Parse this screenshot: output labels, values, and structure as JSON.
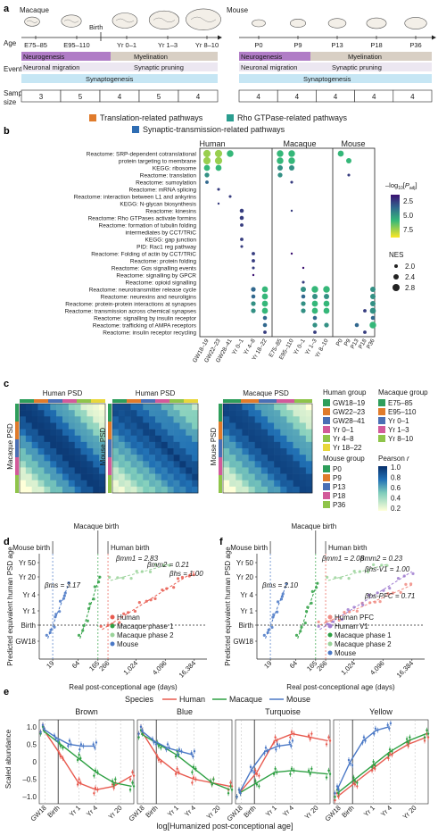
{
  "colors": {
    "human": "#e85a4f",
    "macaque": "#2ea043",
    "mouse": "#4a78c6",
    "neuro": "#b07cc6",
    "myel": "#c9bfb3",
    "synpr": "#b8a9cc",
    "synto": "#b5dcef",
    "translation": "#e07b2b",
    "rho": "#2a9d8f",
    "syn": "#2f6db3"
  },
  "panel_a": {
    "label": "a",
    "macaque": {
      "species": "Macaque",
      "birth": "Birth",
      "axis": "Age",
      "ages": [
        "E75–85",
        "E95–110",
        "Yr 0–1",
        "Yr 1–3",
        "Yr 8–10"
      ],
      "events_label": "Events",
      "neuro": "Neurogenesis",
      "myel": "Myelination",
      "migration": "Neuronal migration",
      "pruning": "Synaptic pruning",
      "synapto": "Synaptogenesis",
      "sample_label": "Sample size",
      "sizes": [
        "3",
        "5",
        "4",
        "5",
        "4"
      ]
    },
    "mouse": {
      "species": "Mouse",
      "ages": [
        "P0",
        "P9",
        "P13",
        "P18",
        "P36"
      ],
      "neuro": "Neurogenesis",
      "myel": "Myelination",
      "migration": "Neuronal migration",
      "pruning": "Synaptic pruning",
      "synapto": "Synaptogenesis",
      "sizes": [
        "4",
        "4",
        "4",
        "4",
        "4"
      ]
    }
  },
  "panel_b": {
    "label": "b",
    "legend": [
      "Translation-related pathways",
      "Rho GTPase-related pathways",
      "Synaptic-transmission-related pathways"
    ],
    "species": [
      "Human",
      "Macaque",
      "Mouse"
    ],
    "pathways": [
      {
        "name": "Reactome: SRP-dependent cotranslational",
        "cat": "translation"
      },
      {
        "name": "protein targeting to membrane",
        "cat": "translation"
      },
      {
        "name": "KEGG: ribosome",
        "cat": "translation"
      },
      {
        "name": "Reactome: translation",
        "cat": "translation"
      },
      {
        "name": "Reactome: sumoylation",
        "cat": "none"
      },
      {
        "name": "Reactome: mRNA splicing",
        "cat": "none"
      },
      {
        "name": "Reactome: interaction between L1 and ankyrins",
        "cat": "none"
      },
      {
        "name": "KEGG: N-glycan biosynthesis",
        "cat": "none"
      },
      {
        "name": "Reactome: kinesins",
        "cat": "none"
      },
      {
        "name": "Reactome: Rho GTPases activate formins",
        "cat": "rho"
      },
      {
        "name": "Reactome: formation of tubulin folding",
        "cat": "none"
      },
      {
        "name": "intermediates by CCT/TRiC",
        "cat": "none"
      },
      {
        "name": "KEGG: gap junction",
        "cat": "none"
      },
      {
        "name": "PID: Rac1 reg pathway",
        "cat": "rho"
      },
      {
        "name": "Reactome: Folding of actin by CCT/TRiC",
        "cat": "none"
      },
      {
        "name": "Reactome: protein folding",
        "cat": "none"
      },
      {
        "name": "Reactome: Gαs signalling events",
        "cat": "none"
      },
      {
        "name": "Reactome: signalling by GPCR",
        "cat": "none"
      },
      {
        "name": "Reactome: opioid signalling",
        "cat": "none"
      },
      {
        "name": "Reactome: neurotransmitter release cycle",
        "cat": "syn"
      },
      {
        "name": "Reactome: neurexins and neuroligins",
        "cat": "none"
      },
      {
        "name": "Reactome: protein-protein interactions at synapses",
        "cat": "syn"
      },
      {
        "name": "Reactome: transmission across chemical synapses",
        "cat": "syn"
      },
      {
        "name": "Reactome: signalling by insulin receptor",
        "cat": "none"
      },
      {
        "name": "Reactome: trafficking of AMPA receptors",
        "cat": "syn"
      },
      {
        "name": "Reactome: insulin receptor recycling",
        "cat": "none"
      }
    ],
    "xticks": {
      "human": [
        "GW18–19",
        "GW22–23",
        "GW28–41",
        "Yr 0–1",
        "Yr 4–8",
        "Yr 18–22"
      ],
      "macaque": [
        "E75–85",
        "E95–110",
        "Yr 0–1",
        "Yr 1–3",
        "Yr 8–10"
      ],
      "mouse": [
        "P0",
        "P9",
        "P13",
        "P18",
        "P36"
      ]
    },
    "cbar_title": "–log10[Padj]",
    "cbar_ticks": [
      "2.5",
      "5.0",
      "7.5"
    ],
    "nes_title": "NES",
    "nes_ticks": [
      "2.0",
      "2.4",
      "2.8"
    ]
  },
  "panel_c": {
    "label": "c",
    "titles": [
      "Human PSD",
      "Human PSD",
      "Macaque PSD"
    ],
    "ylabels": [
      "Macaque PSD",
      "Mouse PSD"
    ],
    "human_group_title": "Human group",
    "human_groups": [
      "GW18–19",
      "GW22–23",
      "GW28–41",
      "Yr 0–1",
      "Yr 4–8",
      "Yr 18–22"
    ],
    "human_group_colors": [
      "#2e9e5b",
      "#e07b2b",
      "#4a6fb5",
      "#d25a9a",
      "#8fc44a",
      "#e8d73b"
    ],
    "macaque_group_title": "Macaque group",
    "macaque_groups": [
      "E75–85",
      "E95–110",
      "Yr 0–1",
      "Yr 1–3",
      "Yr 8–10"
    ],
    "macaque_group_colors": [
      "#2e9e5b",
      "#e07b2b",
      "#4a6fb5",
      "#d25a9a",
      "#8fc44a"
    ],
    "mouse_group_title": "Mouse group",
    "mouse_groups": [
      "P0",
      "P9",
      "P13",
      "P18",
      "P36"
    ],
    "mouse_group_colors": [
      "#2e9e5b",
      "#e07b2b",
      "#4a6fb5",
      "#d25a9a",
      "#8fc44a"
    ],
    "pearson_title": "Pearson r",
    "pearson_ticks": [
      "1.0",
      "0.8",
      "0.6",
      "0.4",
      "0.2"
    ]
  },
  "panel_d": {
    "label": "d",
    "top_labels": [
      "Macaque birth",
      "Mouse birth",
      "Human birth"
    ],
    "ylabel": "Predicted equivalent human PSD age",
    "xlabel": "Real post-conceptional age (days)",
    "yticks": [
      "Yr 50",
      "Yr 20",
      "Yr 4",
      "Yr 1",
      "Birth",
      "GW18"
    ],
    "xticks": [
      "19",
      "64",
      "165",
      "266",
      "1,024",
      "4,096",
      "16,384"
    ],
    "betas": [
      "βms = 3.17",
      "βmm1 = 2.83",
      "βmm2 = 0.21",
      "βhs = 1.00"
    ],
    "legend": [
      "Human",
      "Macaque phase 1",
      "Macaque phase 2",
      "Mouse"
    ]
  },
  "panel_f": {
    "label": "f",
    "top_labels": [
      "Macaque birth",
      "Mouse birth",
      "Human birth"
    ],
    "ylabel": "Predicted equivalent human PSD age",
    "xlabel": "Real post-conceptional age (days)",
    "yticks": [
      "Yr 50",
      "Yr 20",
      "Yr 4",
      "Yr 1",
      "Birth",
      "GW18"
    ],
    "xticks": [
      "19",
      "64",
      "165",
      "266",
      "1,024",
      "4,096",
      "16,384"
    ],
    "betas": [
      "βmm1 = 2.08",
      "βmm2 = 0.23",
      "βms = 2.10",
      "βhs-V1 = 1.00",
      "βhs-PFC = 0.71"
    ],
    "legend": [
      "Human PFC",
      "Human V1",
      "Macaque phase 1",
      "Macaque phase 2",
      "Mouse"
    ]
  },
  "panel_e": {
    "label": "e",
    "species_title": "Species",
    "legend": [
      "Human",
      "Macaque",
      "Mouse"
    ],
    "modules": [
      "Brown",
      "Blue",
      "Turquoise",
      "Yellow"
    ],
    "ylabel": "Scaled abundance",
    "yticks": [
      "1.0",
      "0.5",
      "0",
      "–0.5",
      "–1.0"
    ],
    "xticks": [
      "GW18",
      "Birth",
      "Yr 1",
      "Yr 4",
      "Yr 20"
    ],
    "xlabel": "log[Humanized post-conceptional age]"
  },
  "chart_data": [
    {
      "type": "scatter",
      "title": "",
      "panel": "b",
      "note": "dot plot; rows = pathways, columns = age groups",
      "dots": [
        [
          0,
          0,
          7,
          2.8
        ],
        [
          0,
          1,
          7,
          2.8
        ],
        [
          0,
          2,
          6,
          2.7
        ],
        [
          1,
          0,
          7,
          2.8
        ],
        [
          1,
          1,
          7,
          2.8
        ],
        [
          2,
          0,
          6,
          2.6
        ],
        [
          2,
          1,
          6,
          2.6
        ],
        [
          3,
          0,
          5,
          2.4
        ],
        [
          4,
          0,
          4,
          2.2
        ],
        [
          5,
          1,
          3,
          2.1
        ],
        [
          6,
          2,
          3,
          2.1
        ],
        [
          7,
          1,
          3,
          2.0
        ],
        [
          8,
          3,
          3,
          2.3
        ],
        [
          9,
          3,
          3,
          2.3
        ],
        [
          10,
          3,
          3,
          2.2
        ],
        [
          12,
          3,
          3,
          2.2
        ],
        [
          13,
          3,
          3,
          2.1
        ],
        [
          14,
          4,
          3,
          2.2
        ],
        [
          15,
          4,
          3,
          2.2
        ],
        [
          16,
          4,
          3,
          2.1
        ],
        [
          17,
          4,
          2,
          2.0
        ],
        [
          19,
          5,
          6,
          2.6
        ],
        [
          19,
          4,
          4,
          2.4
        ],
        [
          20,
          5,
          6,
          2.6
        ],
        [
          20,
          4,
          4,
          2.3
        ],
        [
          21,
          5,
          6,
          2.6
        ],
        [
          21,
          4,
          5,
          2.4
        ],
        [
          22,
          5,
          6,
          2.6
        ],
        [
          22,
          4,
          5,
          2.4
        ],
        [
          23,
          5,
          4,
          2.3
        ],
        [
          24,
          5,
          4,
          2.3
        ],
        [
          25,
          5,
          3,
          2.2
        ],
        [
          0,
          6,
          6,
          2.7
        ],
        [
          0,
          7,
          6,
          2.7
        ],
        [
          1,
          6,
          6,
          2.7
        ],
        [
          1,
          7,
          6,
          2.7
        ],
        [
          2,
          6,
          5,
          2.5
        ],
        [
          2,
          7,
          5,
          2.5
        ],
        [
          3,
          6,
          5,
          2.4
        ],
        [
          4,
          7,
          3,
          2.1
        ],
        [
          8,
          7,
          3,
          2.0
        ],
        [
          14,
          7,
          2,
          2.0
        ],
        [
          16,
          8,
          2,
          2.0
        ],
        [
          18,
          8,
          3,
          2.1
        ],
        [
          19,
          8,
          5,
          2.5
        ],
        [
          19,
          9,
          6,
          2.7
        ],
        [
          19,
          10,
          6,
          2.7
        ],
        [
          20,
          8,
          4,
          2.3
        ],
        [
          20,
          9,
          5,
          2.5
        ],
        [
          20,
          10,
          5,
          2.5
        ],
        [
          21,
          8,
          5,
          2.4
        ],
        [
          21,
          9,
          6,
          2.6
        ],
        [
          21,
          10,
          6,
          2.6
        ],
        [
          22,
          8,
          5,
          2.4
        ],
        [
          22,
          9,
          6,
          2.6
        ],
        [
          22,
          10,
          6,
          2.6
        ],
        [
          23,
          9,
          4,
          2.3
        ],
        [
          24,
          9,
          5,
          2.4
        ],
        [
          24,
          10,
          5,
          2.4
        ],
        [
          25,
          9,
          3,
          2.2
        ],
        [
          0,
          11,
          6,
          2.6
        ],
        [
          1,
          12,
          6,
          2.5
        ],
        [
          3,
          12,
          3,
          2.1
        ],
        [
          19,
          15,
          5,
          2.5
        ],
        [
          20,
          15,
          5,
          2.5
        ],
        [
          21,
          15,
          5,
          2.5
        ],
        [
          22,
          14,
          3,
          2.2
        ],
        [
          22,
          15,
          5,
          2.6
        ],
        [
          23,
          15,
          4,
          2.3
        ],
        [
          24,
          13,
          4,
          2.3
        ],
        [
          24,
          15,
          6,
          2.7
        ],
        [
          25,
          14,
          3,
          2.2
        ]
      ]
    },
    {
      "type": "heatmap",
      "panel": "c",
      "title": "Pearson r heatmaps",
      "value_range": [
        0.2,
        1.0
      ]
    },
    {
      "type": "scatter",
      "panel": "d",
      "xlabel": "Real post-conceptional age (days)",
      "ylabel": "Predicted equivalent human PSD age",
      "xscale": "log",
      "series": [
        {
          "name": "Human",
          "slope": 1.0
        },
        {
          "name": "Macaque phase 1",
          "slope": 2.83
        },
        {
          "name": "Macaque phase 2",
          "slope": 0.21
        },
        {
          "name": "Mouse",
          "slope": 3.17
        }
      ]
    },
    {
      "type": "scatter",
      "panel": "f",
      "xlabel": "Real post-conceptional age (days)",
      "ylabel": "Predicted equivalent human PSD age",
      "xscale": "log",
      "series": [
        {
          "name": "Human PFC",
          "slope": 0.71
        },
        {
          "name": "Human V1",
          "slope": 1.0
        },
        {
          "name": "Macaque phase 1",
          "slope": 2.08
        },
        {
          "name": "Macaque phase 2",
          "slope": 0.23
        },
        {
          "name": "Mouse",
          "slope": 2.1
        }
      ]
    },
    {
      "type": "line",
      "panel": "e",
      "ylim": [
        -1.2,
        1.2
      ],
      "modules": [
        {
          "name": "Brown",
          "series": [
            {
              "name": "Human",
              "values": [
                0.95,
                0.2,
                -0.6,
                -0.8,
                -0.7,
                -0.4
              ]
            },
            {
              "name": "Macaque",
              "values": [
                0.9,
                0.5,
                0.1,
                -0.3,
                -0.6,
                -0.7
              ]
            },
            {
              "name": "Mouse",
              "values": [
                0.95,
                0.7,
                0.5,
                0.45,
                0.45
              ]
            }
          ]
        },
        {
          "name": "Blue",
          "series": [
            {
              "name": "Human",
              "values": [
                0.9,
                0.1,
                -0.3,
                -0.5,
                -0.6,
                -0.7
              ]
            },
            {
              "name": "Macaque",
              "values": [
                0.8,
                0.5,
                0.2,
                -0.2,
                -0.6,
                -0.8
              ]
            },
            {
              "name": "Mouse",
              "values": [
                0.9,
                0.6,
                0.4,
                0.3,
                0.2
              ]
            }
          ]
        },
        {
          "name": "Turquoise",
          "series": [
            {
              "name": "Human",
              "values": [
                -0.9,
                -0.3,
                0.6,
                0.8,
                0.7,
                0.6
              ]
            },
            {
              "name": "Macaque",
              "values": [
                -0.9,
                -0.6,
                -0.3,
                -0.25,
                -0.3,
                -0.35
              ]
            },
            {
              "name": "Mouse",
              "values": [
                -0.9,
                -0.2,
                0.3,
                0.45,
                0.5
              ]
            }
          ]
        },
        {
          "name": "Yellow",
          "series": [
            {
              "name": "Human",
              "values": [
                -1.0,
                -0.6,
                -0.2,
                0.2,
                0.5,
                0.7
              ]
            },
            {
              "name": "Macaque",
              "values": [
                -0.9,
                -0.5,
                -0.1,
                0.3,
                0.6,
                0.8
              ]
            },
            {
              "name": "Mouse",
              "values": [
                -0.8,
                0.0,
                0.6,
                0.9,
                1.0
              ]
            }
          ]
        }
      ]
    }
  ]
}
